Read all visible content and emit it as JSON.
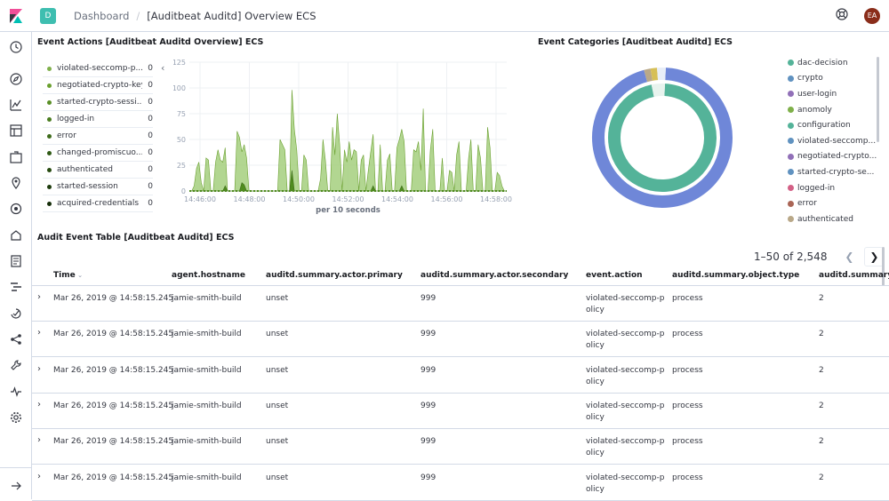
{
  "header": {
    "space_letter": "D",
    "breadcrumbs": [
      "Dashboard",
      "[Auditbeat Auditd] Overview ECS"
    ],
    "avatar_initials": "EA"
  },
  "event_actions": {
    "title": "Event Actions [Auditbeat Auditd Overview] ECS",
    "legend": [
      {
        "label": "violated-seccomp-p...",
        "count": "0",
        "color": "#7fb04a"
      },
      {
        "label": "negotiated-crypto-key",
        "count": "0",
        "color": "#6aa02f"
      },
      {
        "label": "started-crypto-sessi...",
        "count": "0",
        "color": "#5a8f26"
      },
      {
        "label": "logged-in",
        "count": "0",
        "color": "#4a7d1f"
      },
      {
        "label": "error",
        "count": "0",
        "color": "#3d6b1a"
      },
      {
        "label": "changed-promiscuo...",
        "count": "0",
        "color": "#305a15"
      },
      {
        "label": "authenticated",
        "count": "0",
        "color": "#264a10"
      },
      {
        "label": "started-session",
        "count": "0",
        "color": "#1d3b0c"
      },
      {
        "label": "acquired-credentials",
        "count": "0",
        "color": "#152d09"
      }
    ],
    "collapse_glyph": "‹"
  },
  "chart_data": {
    "type": "area",
    "xlabel": "per 10 seconds",
    "ylim": [
      0,
      125
    ],
    "yticks": [
      "0",
      "25",
      "50",
      "75",
      "100",
      "125"
    ],
    "xticks": [
      "14:46:00",
      "14:48:00",
      "14:50:00",
      "14:52:00",
      "14:54:00",
      "14:56:00",
      "14:58:00"
    ],
    "series": [
      {
        "values": [
          0,
          0,
          5,
          22,
          28,
          8,
          0,
          32,
          30,
          0,
          0,
          28,
          40,
          30,
          28,
          42,
          0,
          0,
          0,
          0,
          58,
          52,
          38,
          45,
          32,
          0,
          0,
          0,
          0,
          0,
          0,
          0,
          0,
          0,
          0,
          0,
          0,
          0,
          50,
          45,
          40,
          0,
          0,
          98,
          60,
          40,
          0,
          0,
          35,
          30,
          0,
          0,
          0,
          0,
          0,
          12,
          50,
          30,
          0,
          0,
          62,
          35,
          75,
          45,
          0,
          40,
          28,
          48,
          30,
          40,
          38,
          0,
          30,
          35,
          0,
          20,
          38,
          55,
          0,
          0,
          45,
          0,
          0,
          30,
          36,
          0,
          0,
          42,
          50,
          60,
          48,
          0,
          0,
          0,
          40,
          38,
          48,
          20,
          80,
          0,
          0,
          40,
          60,
          0,
          0,
          0,
          32,
          0,
          0,
          20,
          18,
          0,
          35,
          48,
          0,
          0,
          0,
          32,
          50,
          0,
          0,
          45,
          32,
          0,
          0,
          62,
          42,
          0,
          0,
          18,
          15,
          5,
          0,
          0
        ]
      },
      {
        "values": [
          0,
          0,
          0,
          0,
          0,
          0,
          0,
          0,
          0,
          0,
          0,
          0,
          0,
          0,
          0,
          5,
          0,
          0,
          0,
          0,
          0,
          0,
          8,
          6,
          0,
          0,
          0,
          0,
          0,
          0,
          0,
          0,
          0,
          0,
          0,
          0,
          0,
          0,
          0,
          0,
          0,
          0,
          0,
          20,
          0,
          0,
          0,
          0,
          0,
          0,
          0,
          0,
          0,
          0,
          0,
          0,
          0,
          0,
          0,
          0,
          0,
          0,
          0,
          0,
          0,
          0,
          0,
          0,
          0,
          0,
          0,
          0,
          0,
          0,
          0,
          0,
          0,
          5,
          0,
          0,
          0,
          0,
          0,
          0,
          0,
          0,
          0,
          0,
          0,
          5,
          0,
          0,
          0,
          0,
          0,
          0,
          0,
          0,
          0,
          0,
          0,
          0,
          0,
          0,
          0,
          0,
          0,
          0,
          0,
          0,
          0,
          0,
          0,
          0,
          0,
          0,
          0,
          0,
          0,
          0,
          0,
          0,
          0,
          0,
          0,
          0,
          0,
          0,
          0,
          0,
          0,
          0,
          0,
          0
        ]
      }
    ],
    "colors": [
      "#a4cf7e",
      "#4f8c1f"
    ]
  },
  "event_categories": {
    "title": "Event Categories [Auditbeat Auditd] ECS",
    "legend": [
      {
        "label": "dac-decision",
        "color": "#54b399"
      },
      {
        "label": "crypto",
        "color": "#6092c0"
      },
      {
        "label": "user-login",
        "color": "#9170b8"
      },
      {
        "label": "anomoly",
        "color": "#7fb04a"
      },
      {
        "label": "configuration",
        "color": "#54b399"
      },
      {
        "label": "violated-seccomp...",
        "color": "#6092c0"
      },
      {
        "label": "negotiated-crypto...",
        "color": "#9170b8"
      },
      {
        "label": "started-crypto-se...",
        "color": "#6092c0"
      },
      {
        "label": "logged-in",
        "color": "#d36086"
      },
      {
        "label": "error",
        "color": "#aa6556"
      },
      {
        "label": "authenticated",
        "color": "#b9a888"
      }
    ],
    "donut": {
      "inner": [
        {
          "value": 96,
          "color": "#54b399"
        },
        {
          "value": 4,
          "color": "#e8f3ee"
        }
      ],
      "outer": [
        {
          "value": 95,
          "color": "#6f87d8"
        },
        {
          "value": 1.5,
          "color": "#b9a888"
        },
        {
          "value": 1.5,
          "color": "#d6bf57"
        },
        {
          "value": 2,
          "color": "#e8eef8"
        }
      ]
    }
  },
  "audit_table": {
    "title": "Audit Event Table [Auditbeat Auditd] ECS",
    "pagination": "1–50 of 2,548",
    "columns": [
      "Time",
      "agent.hostname",
      "auditd.summary.actor.primary",
      "auditd.summary.actor.secondary",
      "event.action",
      "auditd.summary.object.type",
      "auditd.summary"
    ],
    "rows": [
      [
        "Mar 26, 2019 @ 14:58:15.245",
        "jamie-smith-build",
        "unset",
        "999",
        "violated-seccomp-p",
        "olicy",
        "process",
        "2"
      ],
      [
        "Mar 26, 2019 @ 14:58:15.245",
        "jamie-smith-build",
        "unset",
        "999",
        "violated-seccomp-p",
        "olicy",
        "process",
        "2"
      ],
      [
        "Mar 26, 2019 @ 14:58:15.245",
        "jamie-smith-build",
        "unset",
        "999",
        "violated-seccomp-p",
        "olicy",
        "process",
        "2"
      ],
      [
        "Mar 26, 2019 @ 14:58:15.245",
        "jamie-smith-build",
        "unset",
        "999",
        "violated-seccomp-p",
        "olicy",
        "process",
        "2"
      ],
      [
        "Mar 26, 2019 @ 14:58:15.245",
        "jamie-smith-build",
        "unset",
        "999",
        "violated-seccomp-p",
        "olicy",
        "process",
        "2"
      ],
      [
        "Mar 26, 2019 @ 14:58:15.245",
        "jamie-smith-build",
        "unset",
        "999",
        "violated-seccomp-p",
        "olicy",
        "process",
        "2"
      ]
    ]
  }
}
